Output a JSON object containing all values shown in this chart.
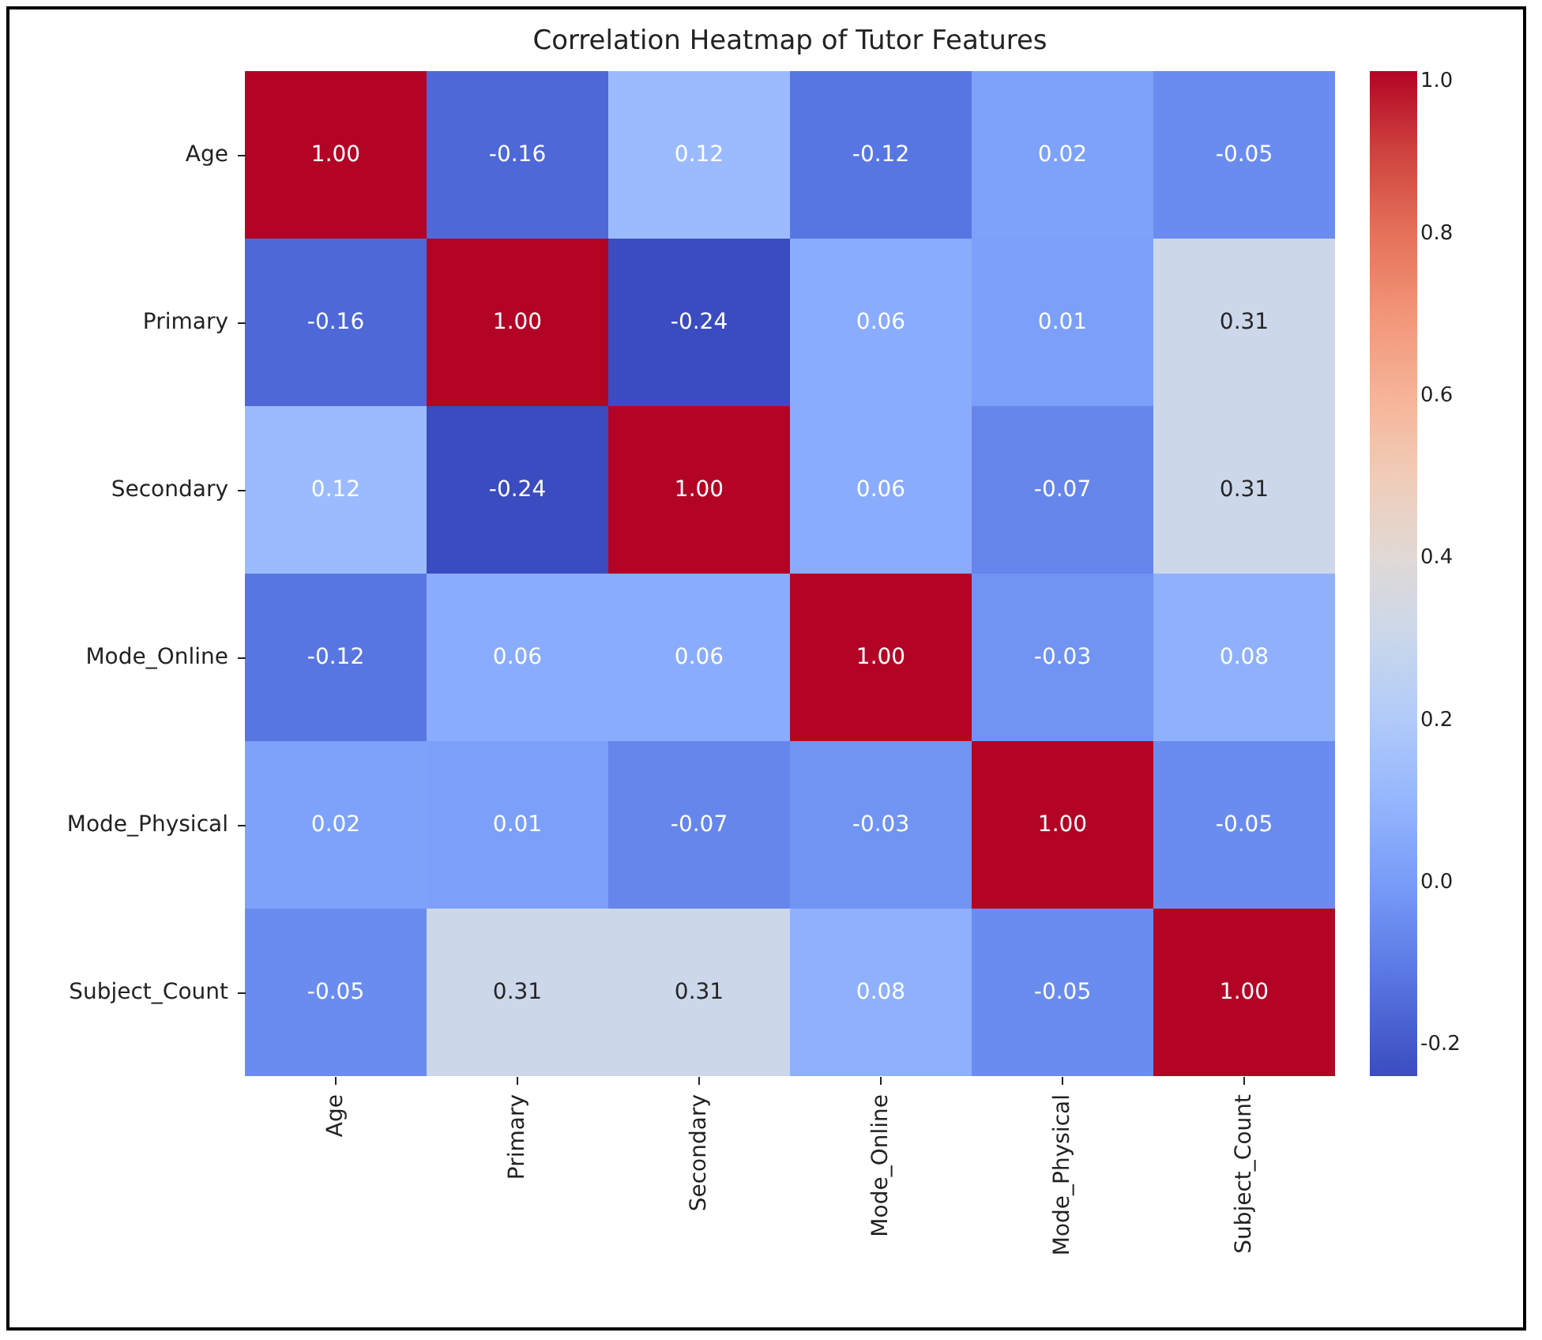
{
  "chart_data": {
    "type": "heatmap",
    "title": "Correlation Heatmap of Tutor Features",
    "categories": [
      "Age",
      "Primary",
      "Secondary",
      "Mode_Online",
      "Mode_Physical",
      "Subject_Count"
    ],
    "y_categories": [
      "Age",
      "Primary",
      "Secondary",
      "Mode_Online",
      "Mode_Physical",
      "Subject_Count"
    ],
    "cells": [
      [
        1.0,
        -0.16,
        0.12,
        -0.12,
        0.02,
        -0.05
      ],
      [
        -0.16,
        1.0,
        -0.24,
        0.06,
        0.01,
        0.31
      ],
      [
        0.12,
        -0.24,
        1.0,
        0.06,
        -0.07,
        0.31
      ],
      [
        -0.12,
        0.06,
        0.06,
        1.0,
        -0.03,
        0.08
      ],
      [
        0.02,
        0.01,
        -0.07,
        -0.03,
        1.0,
        -0.05
      ],
      [
        -0.05,
        0.31,
        0.31,
        0.08,
        -0.05,
        1.0
      ]
    ],
    "cell_labels": [
      [
        "1.00",
        "-0.16",
        "0.12",
        "-0.12",
        "0.02",
        "-0.05"
      ],
      [
        "-0.16",
        "1.00",
        "-0.24",
        "0.06",
        "0.01",
        "0.31"
      ],
      [
        "0.12",
        "-0.24",
        "1.00",
        "0.06",
        "-0.07",
        "0.31"
      ],
      [
        "-0.12",
        "0.06",
        "0.06",
        "1.00",
        "-0.03",
        "0.08"
      ],
      [
        "0.02",
        "0.01",
        "-0.07",
        "-0.03",
        "1.00",
        "-0.05"
      ],
      [
        "-0.05",
        "0.31",
        "0.31",
        "0.08",
        "-0.05",
        "1.00"
      ]
    ],
    "clim": [
      -0.24,
      1.0
    ],
    "cticks": [
      {
        "value": -0.2,
        "label": "-0.2"
      },
      {
        "value": 0,
        "label": "0.0"
      },
      {
        "value": 0.2,
        "label": "0.2"
      },
      {
        "value": 0.4,
        "label": "0.4"
      },
      {
        "value": 0.6,
        "label": "0.6"
      },
      {
        "value": 0.8,
        "label": "0.8"
      },
      {
        "value": 1,
        "label": "1.0"
      }
    ]
  }
}
